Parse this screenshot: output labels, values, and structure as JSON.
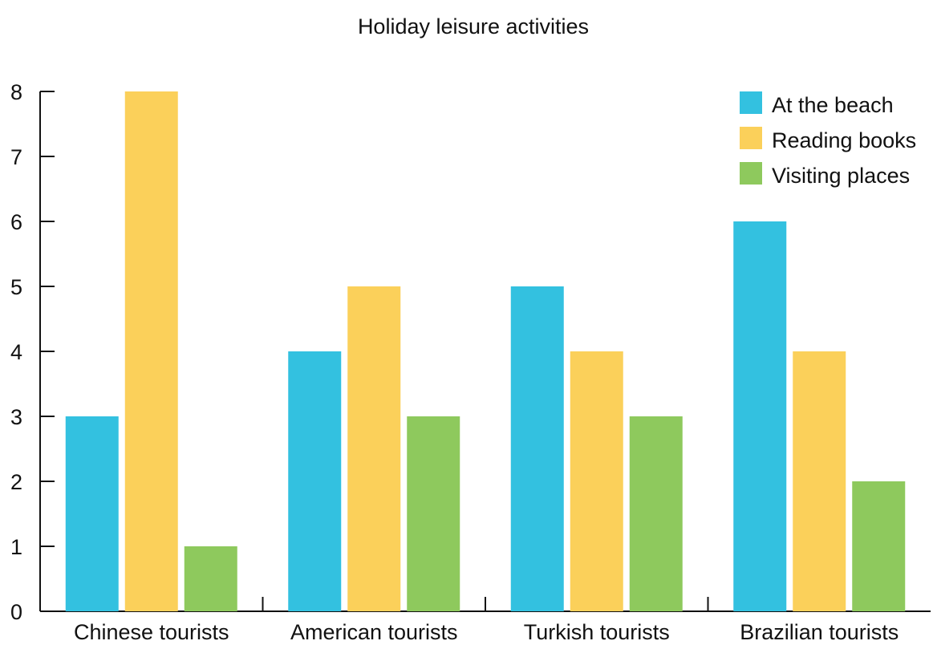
{
  "chart_data": {
    "type": "bar",
    "title": "Holiday leisure activities",
    "xlabel": "",
    "ylabel": "",
    "categories": [
      "Chinese tourists",
      "American tourists",
      "Turkish tourists",
      "Brazilian tourists"
    ],
    "series": [
      {
        "name": "At the beach",
        "color": "#33c1e0",
        "values": [
          3,
          4,
          5,
          6
        ]
      },
      {
        "name": "Reading books",
        "color": "#fbd05a",
        "values": [
          8,
          5,
          4,
          4
        ]
      },
      {
        "name": "Visiting places",
        "color": "#8ec95d",
        "values": [
          1,
          3,
          3,
          2
        ]
      }
    ],
    "ylim": [
      0,
      8
    ],
    "yticks": [
      0,
      1,
      2,
      3,
      4,
      5,
      6,
      7,
      8
    ],
    "grid": false,
    "legend_position": "top-right"
  }
}
